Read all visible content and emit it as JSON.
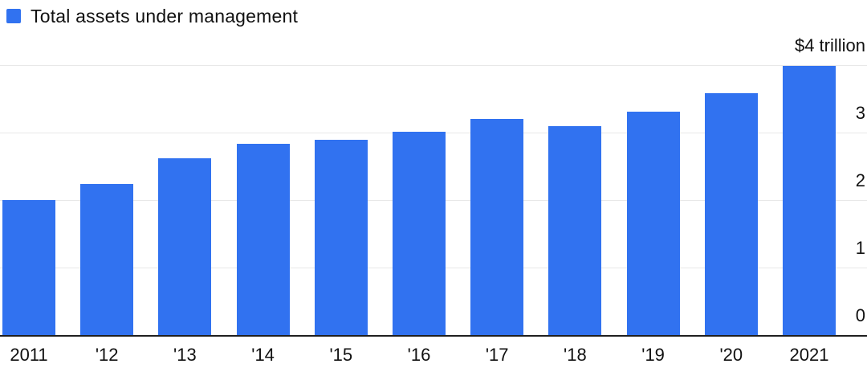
{
  "legend": {
    "label": "Total assets under management"
  },
  "colors": {
    "bar": "#3172F0",
    "gridline": "#e8e8e8",
    "axis_line": "#1f1f1f",
    "text": "#111111"
  },
  "chart_data": {
    "type": "bar",
    "title": "Total assets under management",
    "categories": [
      "2011",
      "'12",
      "'13",
      "'14",
      "'15",
      "'16",
      "'17",
      "'18",
      "'19",
      "'20",
      "2021"
    ],
    "values": [
      2.01,
      2.25,
      2.63,
      2.85,
      2.9,
      3.02,
      3.21,
      3.11,
      3.32,
      3.6,
      4.0
    ],
    "unit": "trillion USD",
    "xlabel": "",
    "ylabel": "",
    "ylim": [
      0,
      4
    ],
    "y_ticks": [
      {
        "value": 4,
        "label": "$4 trillion"
      },
      {
        "value": 3,
        "label": "3"
      },
      {
        "value": 2,
        "label": "2"
      },
      {
        "value": 1,
        "label": "1"
      },
      {
        "value": 0,
        "label": "0"
      }
    ],
    "grid": true,
    "legend_position": "top-left",
    "legend_entries": [
      "Total assets under management"
    ]
  }
}
